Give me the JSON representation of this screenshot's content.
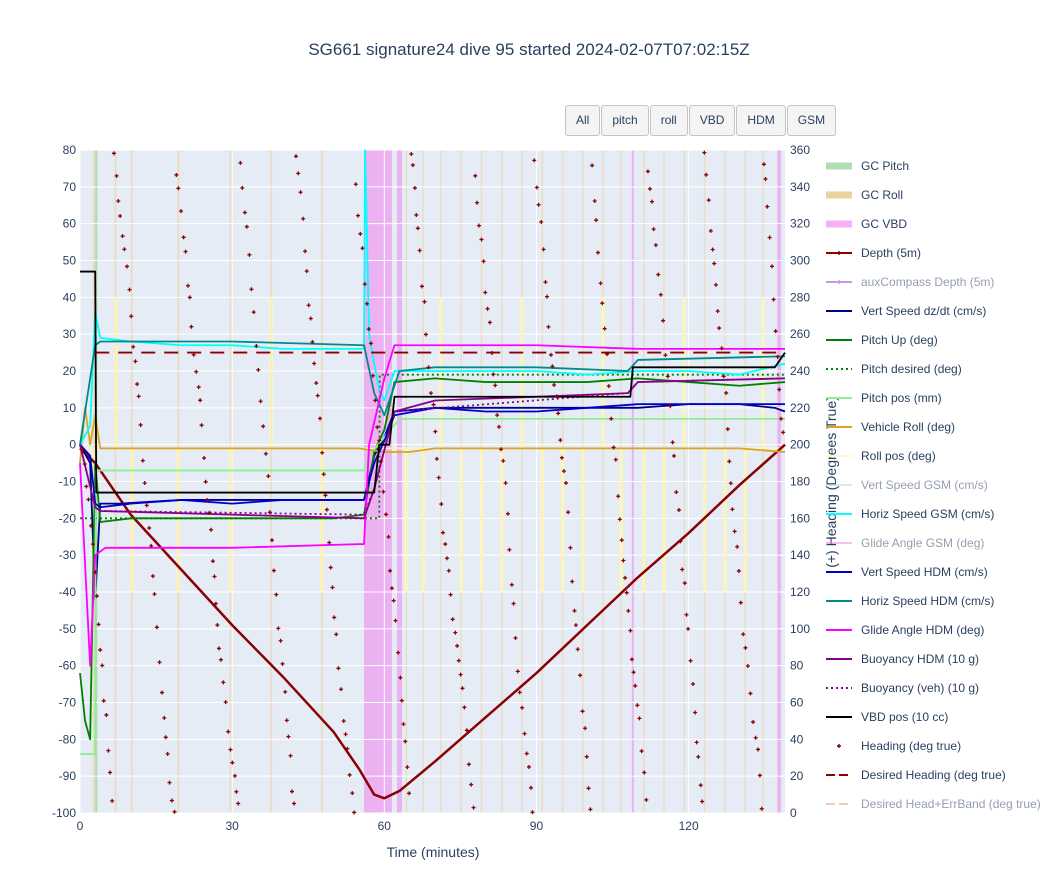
{
  "title": "SG661 signature24 dive 95 started 2024-02-07T07:02:15Z",
  "buttons": [
    "All",
    "pitch",
    "roll",
    "VBD",
    "HDM",
    "GSM"
  ],
  "chart_data": {
    "type": "line",
    "xlabel": "Time (minutes)",
    "ylabel": "",
    "y2label": "(+) Heading (Degrees True)",
    "xlim": [
      0,
      139
    ],
    "ylim": [
      -100,
      80
    ],
    "y2lim": [
      0,
      360
    ],
    "xticks": [
      0,
      30,
      60,
      90,
      120
    ],
    "yticks": [
      80,
      70,
      60,
      50,
      40,
      30,
      20,
      10,
      0,
      -10,
      -20,
      -30,
      -40,
      -50,
      -60,
      -70,
      -80,
      -90,
      -100
    ],
    "y2ticks": [
      360,
      340,
      320,
      300,
      280,
      260,
      240,
      220,
      200,
      180,
      160,
      140,
      120,
      100,
      80,
      60,
      40,
      20,
      0
    ],
    "grid": true,
    "legend_position": "right",
    "bands": {
      "gc_vbd": [
        [
          56,
          61.5
        ],
        [
          62.5,
          63.5
        ],
        [
          108.8,
          109.2
        ],
        [
          137.5,
          138.2
        ]
      ],
      "gc_pitch": [
        [
          3,
          3.4
        ]
      ],
      "gc_roll": [
        [
          2.5,
          3
        ],
        [
          6.8,
          7.2
        ],
        [
          10,
          10.4
        ],
        [
          19.2,
          19.6
        ],
        [
          29.5,
          29.9
        ],
        [
          37.5,
          37.9
        ],
        [
          47.5,
          47.9
        ],
        [
          64.2,
          64.5
        ],
        [
          67.5,
          67.8
        ],
        [
          71,
          71.3
        ],
        [
          75,
          75.3
        ],
        [
          79,
          79.3
        ],
        [
          83,
          83.3
        ],
        [
          87,
          87.3
        ],
        [
          91,
          91.3
        ],
        [
          95,
          95.3
        ],
        [
          99,
          99.3
        ],
        [
          103,
          103.3
        ],
        [
          106.5,
          106.8
        ],
        [
          111,
          111.3
        ],
        [
          115,
          115.3
        ],
        [
          119,
          119.3
        ],
        [
          123,
          123.3
        ],
        [
          127,
          127.3
        ],
        [
          131,
          131.3
        ],
        [
          134.5,
          134.8
        ]
      ]
    },
    "series": [
      {
        "name": "Depth (5m)",
        "color": "#8b0000",
        "dash": "solid",
        "x": [
          0,
          3,
          10,
          20,
          30,
          40,
          50,
          55,
          58,
          60,
          63,
          70,
          80,
          90,
          100,
          110,
          120,
          130,
          139
        ],
        "y": [
          -1,
          -5,
          -19,
          -34,
          -49,
          -63,
          -78,
          -88,
          -95,
          -96,
          -94,
          -86,
          -74,
          -62,
          -49,
          -36,
          -24,
          -11,
          0
        ]
      },
      {
        "name": "Vert Speed dz/dt (cm/s)",
        "color": "#00008b",
        "dash": "solid",
        "x": [
          0,
          2,
          3,
          4,
          8,
          20,
          30,
          40,
          50,
          56,
          58,
          60,
          62,
          70,
          80,
          90,
          100,
          110,
          120,
          130,
          137,
          139
        ],
        "y": [
          0,
          -5,
          -42,
          -16,
          -16,
          -15,
          -15,
          -15,
          -15,
          -15,
          -3,
          2,
          9,
          10,
          10,
          10,
          10,
          10,
          11,
          11,
          10,
          9
        ]
      },
      {
        "name": "Pitch Up (deg)",
        "color": "#008000",
        "dash": "solid",
        "x": [
          0,
          1,
          2,
          3,
          4,
          10,
          20,
          30,
          40,
          50,
          56,
          58,
          60,
          62,
          70,
          80,
          90,
          100,
          110,
          120,
          130,
          139
        ],
        "y": [
          -62,
          -75,
          -80,
          -5,
          -21,
          -20,
          -20,
          -20,
          -20,
          -20,
          -19,
          -2,
          4,
          17,
          18,
          17,
          17,
          17,
          18,
          17,
          16,
          17
        ]
      },
      {
        "name": "Pitch desired (deg)",
        "color": "#008000",
        "dash": "dot",
        "x": [
          0,
          3,
          3.1,
          56,
          59,
          59.1,
          139
        ],
        "y": [
          -20,
          -20,
          -20,
          -20,
          -20,
          19,
          19
        ]
      },
      {
        "name": "Pitch pos (mm)",
        "color": "#90ee90",
        "dash": "solid",
        "x": [
          0,
          3,
          3.1,
          56,
          57,
          63,
          139
        ],
        "y": [
          -84,
          -84,
          -7,
          -7,
          -3,
          7,
          7
        ]
      },
      {
        "name": "Vehicle Roll (deg)",
        "color": "#daa520",
        "dash": "solid",
        "x": [
          0,
          1,
          2,
          3,
          4,
          10,
          20,
          30,
          40,
          50,
          55,
          60,
          65,
          70,
          80,
          90,
          100,
          110,
          120,
          130,
          139
        ],
        "y": [
          -5,
          10,
          0,
          8,
          -1,
          -1,
          -1,
          -1,
          -1,
          -1,
          -1,
          -2,
          -2,
          -1,
          -1,
          -1,
          -1,
          -1,
          -1,
          -1,
          -2
        ]
      },
      {
        "name": "Horiz Speed GSM (cm/s)",
        "color": "#00ffff",
        "dash": "solid",
        "x": [
          0,
          2,
          3,
          4,
          10,
          20,
          30,
          40,
          50,
          56,
          56.2,
          57,
          58,
          59,
          60,
          62,
          70,
          80,
          90,
          100,
          110,
          120,
          130,
          139
        ],
        "y": [
          0,
          5,
          36,
          29,
          28,
          27,
          27,
          26,
          26,
          26,
          80,
          30,
          22,
          15,
          12,
          20,
          20,
          20,
          20,
          19,
          20,
          20,
          19,
          22
        ]
      },
      {
        "name": "Vert Speed HDM (cm/s)",
        "color": "#0000cd",
        "dash": "solid",
        "x": [
          0,
          2,
          3,
          4,
          10,
          20,
          30,
          40,
          50,
          56,
          58,
          60,
          62,
          70,
          80,
          90,
          100,
          110,
          120,
          130,
          139
        ],
        "y": [
          0,
          -3,
          -16,
          -17,
          -16,
          -15,
          -16,
          -15,
          -15,
          -15,
          -5,
          1,
          8,
          10,
          9,
          9,
          10,
          11,
          11,
          11,
          11
        ]
      },
      {
        "name": "Horiz Speed HDM (cm/s)",
        "color": "#008b8b",
        "dash": "solid",
        "x": [
          0,
          3,
          4,
          10,
          30,
          56,
          58,
          60,
          63,
          70,
          90,
          108,
          110,
          139
        ],
        "y": [
          0,
          27,
          28,
          28,
          28,
          27,
          14,
          8,
          20,
          21,
          21,
          20,
          23,
          24
        ]
      },
      {
        "name": "Glide Angle HDM (deg)",
        "color": "#ff00ff",
        "dash": "solid",
        "x": [
          0,
          2,
          3,
          5,
          10,
          30,
          55,
          56,
          57,
          60,
          62,
          70,
          90,
          110,
          130,
          139
        ],
        "y": [
          -5,
          -60,
          -30,
          -28,
          -28,
          -28,
          -27,
          -27,
          0,
          18,
          27,
          27,
          27,
          26,
          26,
          26
        ]
      },
      {
        "name": "Buoyancy HDM (10 g)",
        "color": "#8b008b",
        "dash": "solid",
        "x": [
          0,
          3,
          4,
          30,
          56,
          58,
          62,
          70,
          90,
          108,
          110,
          139
        ],
        "y": [
          0,
          -17,
          -18,
          -19,
          -20,
          -12,
          9,
          12,
          13,
          14,
          17,
          18
        ]
      },
      {
        "name": "Buoyancy (veh) (10 g)",
        "color": "#8b008b",
        "dash": "dot",
        "x": [
          0,
          3,
          4,
          56,
          58,
          62,
          108,
          110,
          139
        ],
        "y": [
          0,
          -17,
          -18,
          -19,
          -12,
          9,
          14,
          17,
          18
        ]
      },
      {
        "name": "VBD pos (10 cc)",
        "color": "#000000",
        "dash": "solid",
        "x": [
          0,
          3,
          3.2,
          56,
          58,
          59,
          61,
          62,
          108.5,
          109,
          137,
          139
        ],
        "y": [
          47,
          47,
          -13,
          -13,
          -13,
          0,
          0,
          13,
          13,
          21,
          21,
          25
        ]
      },
      {
        "name": "Desired Heading (deg true)",
        "color": "#8b0000",
        "dash": "dash",
        "axis": "y2",
        "x": [
          3,
          139
        ],
        "y": [
          250,
          250
        ]
      }
    ],
    "roll_pos": {
      "name": "Roll pos (deg)",
      "color": "#ffffe0",
      "base": -1,
      "pulse_to": -40,
      "high_to": 40
    },
    "heading": {
      "name": "Heading (deg true)",
      "color": "#8b0000",
      "axis": "y2"
    }
  },
  "legend": [
    {
      "label": "GC Pitch",
      "color": "#b3dcb3",
      "kind": "band",
      "off": false
    },
    {
      "label": "GC Roll",
      "color": "#ecd29e",
      "kind": "band",
      "off": false
    },
    {
      "label": "GC VBD",
      "color": "#f7b0f7",
      "kind": "band",
      "off": false
    },
    {
      "label": "Depth (5m)",
      "color": "#8b0000",
      "kind": "line-marker",
      "off": false
    },
    {
      "label": "auxCompass Depth (5m)",
      "color": "#9932cc",
      "kind": "line-marker",
      "off": true
    },
    {
      "label": "Vert Speed dz/dt (cm/s)",
      "color": "#00008b",
      "kind": "line",
      "off": false
    },
    {
      "label": "Pitch Up (deg)",
      "color": "#008000",
      "kind": "line",
      "off": false
    },
    {
      "label": "Pitch desired (deg)",
      "color": "#008000",
      "kind": "dot",
      "off": false
    },
    {
      "label": "Pitch pos (mm)",
      "color": "#90ee90",
      "kind": "line",
      "off": false
    },
    {
      "label": "Vehicle Roll (deg)",
      "color": "#daa520",
      "kind": "line",
      "off": false
    },
    {
      "label": "Roll pos (deg)",
      "color": "#fffacd",
      "kind": "line",
      "off": false
    },
    {
      "label": "Vert Speed GSM (cm/s)",
      "color": "#add8e6",
      "kind": "line",
      "off": true
    },
    {
      "label": "Horiz Speed GSM (cm/s)",
      "color": "#00ffff",
      "kind": "line",
      "off": false
    },
    {
      "label": "Glide Angle GSM (deg)",
      "color": "#ee82ee",
      "kind": "line",
      "off": true
    },
    {
      "label": "Vert Speed HDM (cm/s)",
      "color": "#0000cd",
      "kind": "line",
      "off": false
    },
    {
      "label": "Horiz Speed HDM (cm/s)",
      "color": "#008b8b",
      "kind": "line",
      "off": false
    },
    {
      "label": "Glide Angle HDM (deg)",
      "color": "#ff00ff",
      "kind": "line",
      "off": false
    },
    {
      "label": "Buoyancy HDM (10 g)",
      "color": "#8b008b",
      "kind": "line",
      "off": false
    },
    {
      "label": "Buoyancy (veh) (10 g)",
      "color": "#8b008b",
      "kind": "dot",
      "off": false
    },
    {
      "label": "VBD pos (10 cc)",
      "color": "#000000",
      "kind": "line",
      "off": false
    },
    {
      "label": "Heading (deg true)",
      "color": "#8b0000",
      "kind": "marker",
      "off": false
    },
    {
      "label": "Desired Heading (deg true)",
      "color": "#8b0000",
      "kind": "dash",
      "off": false
    },
    {
      "label": "Desired Head+ErrBand (deg true)",
      "color": "#e9967a",
      "kind": "dash",
      "off": true
    }
  ]
}
